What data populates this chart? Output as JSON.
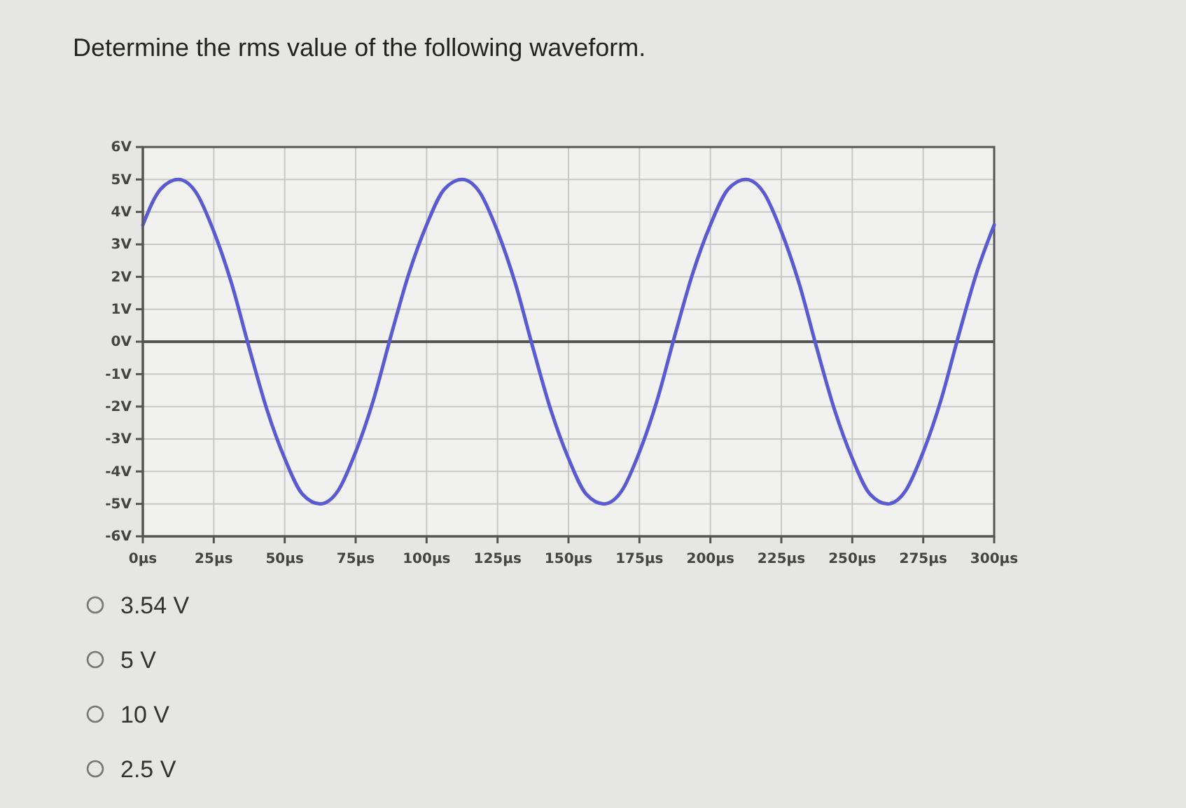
{
  "chart_data": {
    "type": "line",
    "title": "Determine the rms value of the following waveform.",
    "x": [
      0,
      6.25,
      12.5,
      18.75,
      25,
      31.25,
      37.5,
      43.75,
      50,
      56.25,
      62.5,
      68.75,
      75,
      81.25,
      87.5,
      93.75,
      100,
      106.25,
      112.5,
      118.75,
      125,
      131.25,
      137.5,
      143.75,
      150,
      156.25,
      162.5,
      168.75,
      175,
      181.25,
      187.5,
      193.75,
      200,
      206.25,
      212.5,
      218.75,
      225,
      231.25,
      237.5,
      243.75,
      250,
      256.25,
      262.5,
      268.75,
      275,
      281.25,
      287.5,
      293.75,
      300
    ],
    "series": [
      {
        "color": "#5a5ad2",
        "values": [
          3.6,
          4.7,
          5,
          4.6,
          3.4,
          1.8,
          -0.2,
          -2.1,
          -3.6,
          -4.7,
          -5,
          -4.6,
          -3.4,
          -1.8,
          0.2,
          2.1,
          3.6,
          4.7,
          5,
          4.6,
          3.4,
          1.8,
          -0.2,
          -2.1,
          -3.6,
          -4.7,
          -5,
          -4.6,
          -3.4,
          -1.8,
          0.2,
          2.1,
          3.6,
          4.7,
          5,
          4.6,
          3.4,
          1.8,
          -0.2,
          -2.1,
          -3.6,
          -4.7,
          -5,
          -4.6,
          -3.4,
          -1.8,
          0.2,
          2.1,
          3.6
        ]
      }
    ],
    "xlim": [
      0,
      300
    ],
    "xticks": [
      {
        "value": 0,
        "label": "0µs"
      },
      {
        "value": 25,
        "label": "25µs"
      },
      {
        "value": 50,
        "label": "50µs"
      },
      {
        "value": 75,
        "label": "75µs"
      },
      {
        "value": 100,
        "label": "100µs"
      },
      {
        "value": 125,
        "label": "125µs"
      },
      {
        "value": 150,
        "label": "150µs"
      },
      {
        "value": 175,
        "label": "175µs"
      },
      {
        "value": 200,
        "label": "200µs"
      },
      {
        "value": 225,
        "label": "225µs"
      },
      {
        "value": 250,
        "label": "250µs"
      },
      {
        "value": 275,
        "label": "275µs"
      },
      {
        "value": 300,
        "label": "300µs"
      }
    ],
    "ylim": [
      -6,
      6
    ],
    "yticks": [
      {
        "value": -6,
        "label": "-6V"
      },
      {
        "value": -5,
        "label": "-5V"
      },
      {
        "value": -4,
        "label": "-4V"
      },
      {
        "value": -3,
        "label": "-3V"
      },
      {
        "value": -2,
        "label": "-2V"
      },
      {
        "value": -1,
        "label": "-1V"
      },
      {
        "value": 0,
        "label": "0V"
      },
      {
        "value": 1,
        "label": "1V"
      },
      {
        "value": 2,
        "label": "2V"
      },
      {
        "value": 3,
        "label": "3V"
      },
      {
        "value": 4,
        "label": "4V"
      },
      {
        "value": 5,
        "label": "5V"
      },
      {
        "value": 6,
        "label": "6V"
      }
    ],
    "grid": true,
    "ref_lines": [
      {
        "axis": "y",
        "value": 0,
        "color": "#555555"
      }
    ],
    "annotations": [
      "3.54 V",
      "5 V",
      "10 V",
      "2.5 V"
    ]
  }
}
